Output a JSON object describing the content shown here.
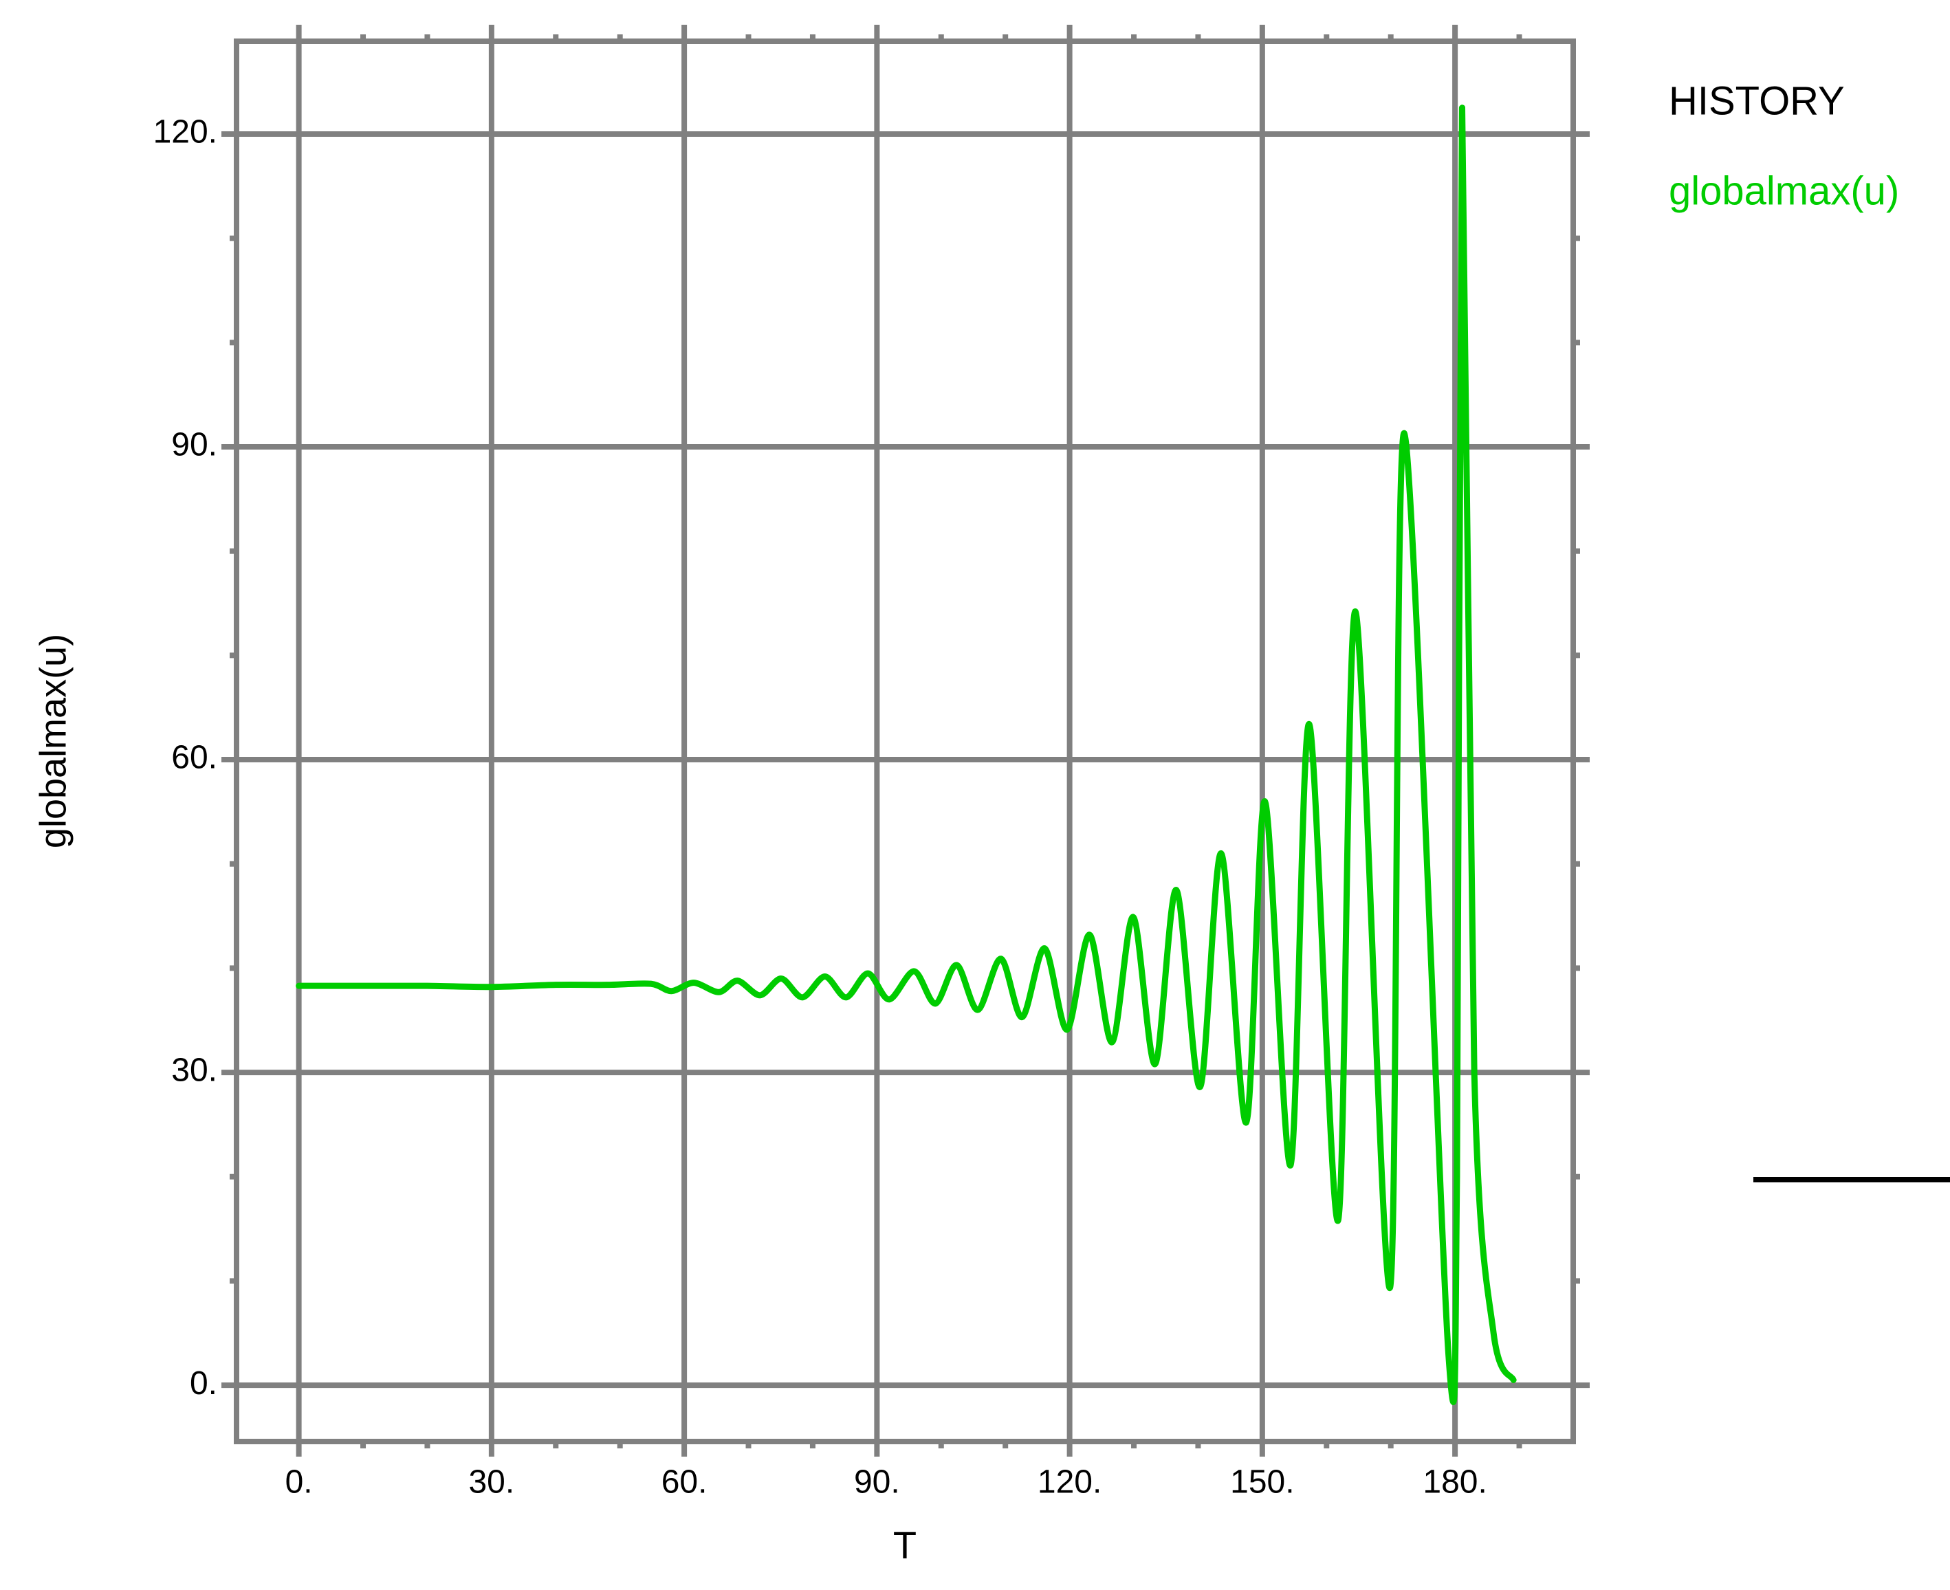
{
  "chart_data": {
    "type": "line",
    "xlabel": "T",
    "ylabel": "globalmax(u)",
    "legend_title": "HISTORY",
    "legend": "right",
    "grid": true,
    "xlim": [
      -9.7,
      198.4
    ],
    "ylim": [
      -5.4,
      128.9
    ],
    "xticks": [
      {
        "value": 0,
        "label": "0."
      },
      {
        "value": 30,
        "label": "30."
      },
      {
        "value": 60,
        "label": "60."
      },
      {
        "value": 90,
        "label": "90."
      },
      {
        "value": 120,
        "label": "120."
      },
      {
        "value": 150,
        "label": "150."
      },
      {
        "value": 180,
        "label": "180."
      }
    ],
    "yticks": [
      {
        "value": 0,
        "label": "0."
      },
      {
        "value": 30,
        "label": "30."
      },
      {
        "value": 60,
        "label": "60."
      },
      {
        "value": 90,
        "label": "90."
      },
      {
        "value": 120,
        "label": "120."
      }
    ],
    "xminorticks": [
      10,
      20,
      40,
      50,
      70,
      80,
      100,
      110,
      130,
      140,
      160,
      170,
      190
    ],
    "yminorticks": [
      10,
      20,
      40,
      50,
      70,
      80,
      100,
      110
    ],
    "series": [
      {
        "name": "globalmax(u)",
        "color": "#00cc00",
        "x": [
          0,
          10,
          20,
          30,
          40,
          48,
          54.8,
          58,
          61.5,
          65.4,
          68.3,
          71.8,
          75.1,
          78.4,
          81.9,
          85.2,
          88.6,
          91.9,
          95.8,
          99.1,
          102.4,
          105.7,
          109.3,
          112.6,
          116.1,
          119.6,
          123.1,
          126.6,
          129.9,
          133.3,
          136.6,
          140.3,
          143.6,
          147.5,
          150.4,
          154.4,
          157.3,
          161.8,
          164.5,
          169.9,
          172.1,
          179.0,
          180.3,
          181.1,
          183,
          186,
          189.1
        ],
        "values": [
          38.3,
          38.3,
          38.3,
          38.2,
          38.4,
          38.4,
          38.5,
          37.8,
          38.6,
          37.7,
          38.8,
          37.4,
          39.0,
          37.2,
          39.2,
          37.2,
          39.5,
          37.0,
          39.7,
          36.6,
          40.3,
          36.0,
          40.9,
          35.3,
          41.9,
          34.1,
          43.2,
          32.9,
          44.9,
          30.8,
          47.5,
          28.6,
          51.0,
          25.2,
          56.0,
          21.1,
          63.4,
          15.8,
          74.2,
          9.4,
          91.3,
          2.8,
          20,
          122.5,
          30,
          5,
          0.5
        ]
      }
    ]
  }
}
